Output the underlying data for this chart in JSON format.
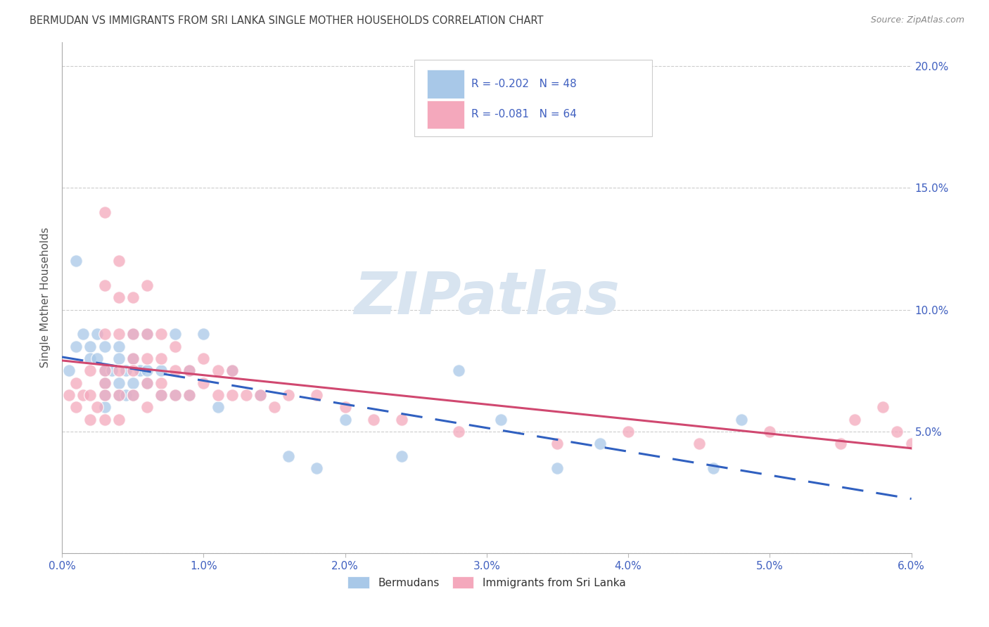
{
  "title": "BERMUDAN VS IMMIGRANTS FROM SRI LANKA SINGLE MOTHER HOUSEHOLDS CORRELATION CHART",
  "source": "Source: ZipAtlas.com",
  "ylabel": "Single Mother Households",
  "xmin": 0.0,
  "xmax": 0.06,
  "ymin": 0.0,
  "ymax": 0.21,
  "yticks": [
    0.0,
    0.05,
    0.1,
    0.15,
    0.2
  ],
  "xticks": [
    0.0,
    0.01,
    0.02,
    0.03,
    0.04,
    0.05,
    0.06
  ],
  "blue_color": "#A8C8E8",
  "pink_color": "#F4A8BC",
  "line_blue_color": "#3060C0",
  "line_pink_color": "#D04870",
  "watermark_color": "#D8E4F0",
  "title_color": "#404040",
  "axis_color": "#4060C0",
  "blue_scatter_x": [
    0.0005,
    0.001,
    0.001,
    0.0015,
    0.002,
    0.002,
    0.0025,
    0.0025,
    0.003,
    0.003,
    0.003,
    0.003,
    0.003,
    0.0035,
    0.004,
    0.004,
    0.004,
    0.004,
    0.0045,
    0.0045,
    0.005,
    0.005,
    0.005,
    0.005,
    0.0055,
    0.006,
    0.006,
    0.006,
    0.007,
    0.007,
    0.008,
    0.008,
    0.009,
    0.009,
    0.01,
    0.011,
    0.012,
    0.014,
    0.016,
    0.018,
    0.02,
    0.024,
    0.028,
    0.031,
    0.035,
    0.038,
    0.046,
    0.048
  ],
  "blue_scatter_y": [
    0.075,
    0.12,
    0.085,
    0.09,
    0.085,
    0.08,
    0.09,
    0.08,
    0.085,
    0.075,
    0.07,
    0.065,
    0.06,
    0.075,
    0.085,
    0.08,
    0.07,
    0.065,
    0.075,
    0.065,
    0.09,
    0.08,
    0.07,
    0.065,
    0.075,
    0.09,
    0.075,
    0.07,
    0.075,
    0.065,
    0.09,
    0.065,
    0.075,
    0.065,
    0.09,
    0.06,
    0.075,
    0.065,
    0.04,
    0.035,
    0.055,
    0.04,
    0.075,
    0.055,
    0.035,
    0.045,
    0.035,
    0.055
  ],
  "pink_scatter_x": [
    0.0005,
    0.001,
    0.001,
    0.0015,
    0.002,
    0.002,
    0.002,
    0.0025,
    0.003,
    0.003,
    0.003,
    0.003,
    0.003,
    0.003,
    0.003,
    0.004,
    0.004,
    0.004,
    0.004,
    0.004,
    0.004,
    0.005,
    0.005,
    0.005,
    0.005,
    0.005,
    0.006,
    0.006,
    0.006,
    0.006,
    0.006,
    0.007,
    0.007,
    0.007,
    0.007,
    0.008,
    0.008,
    0.008,
    0.009,
    0.009,
    0.01,
    0.01,
    0.011,
    0.011,
    0.012,
    0.012,
    0.013,
    0.014,
    0.015,
    0.016,
    0.018,
    0.02,
    0.022,
    0.024,
    0.028,
    0.035,
    0.04,
    0.045,
    0.05,
    0.055,
    0.056,
    0.058,
    0.059,
    0.06
  ],
  "pink_scatter_y": [
    0.065,
    0.07,
    0.06,
    0.065,
    0.075,
    0.065,
    0.055,
    0.06,
    0.14,
    0.11,
    0.09,
    0.075,
    0.07,
    0.065,
    0.055,
    0.12,
    0.105,
    0.09,
    0.075,
    0.065,
    0.055,
    0.105,
    0.09,
    0.08,
    0.075,
    0.065,
    0.11,
    0.09,
    0.08,
    0.07,
    0.06,
    0.09,
    0.08,
    0.07,
    0.065,
    0.085,
    0.075,
    0.065,
    0.075,
    0.065,
    0.08,
    0.07,
    0.075,
    0.065,
    0.075,
    0.065,
    0.065,
    0.065,
    0.06,
    0.065,
    0.065,
    0.06,
    0.055,
    0.055,
    0.05,
    0.045,
    0.05,
    0.045,
    0.05,
    0.045,
    0.055,
    0.06,
    0.05,
    0.045
  ]
}
